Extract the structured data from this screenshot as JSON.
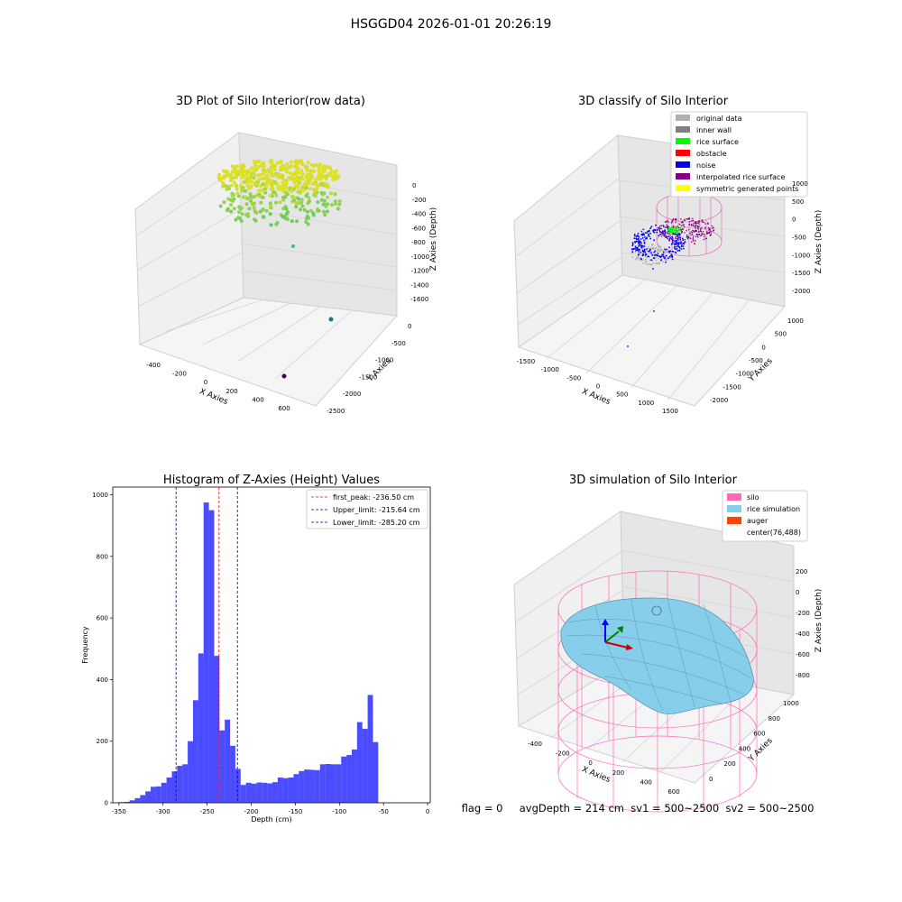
{
  "suptitle": "HSGGD04 2026-01-01 20:26:19",
  "chart_data": [
    {
      "type": "scatter",
      "title": "3D Plot of Silo Interior(row data)",
      "xlabel": "X Axies",
      "ylabel": "Y Axies",
      "zlabel": "Z Axies (Depth)",
      "x_ticks": [
        "-400",
        "-200",
        "0",
        "200",
        "400",
        "600"
      ],
      "y_ticks": [
        "0",
        "-500",
        "-1000",
        "-1500",
        "-2000",
        "-2500"
      ],
      "z_ticks": [
        "0",
        "-200",
        "-400",
        "-600",
        "-800",
        "-1000",
        "-1200",
        "-1400",
        "-1600"
      ],
      "grid": true
    },
    {
      "type": "scatter",
      "title": "3D classify of Silo Interior",
      "xlabel": "X Axies",
      "ylabel": "Y Axies",
      "zlabel": "Z Axies (Depth)",
      "x_ticks": [
        "-1500",
        "-1000",
        "-500",
        "0",
        "500",
        "1000",
        "1500"
      ],
      "y_ticks": [
        "1000",
        "500",
        "0",
        "-500",
        "-1000",
        "-1500",
        "-2000"
      ],
      "z_ticks": [
        "1000",
        "500",
        "0",
        "-500",
        "-1000",
        "-1500",
        "-2000"
      ],
      "legend": {
        "placement": "top-right",
        "entries": [
          {
            "label": "original data",
            "color": "#b0b0b0"
          },
          {
            "label": "inner wall",
            "color": "#808080"
          },
          {
            "label": "rice surface",
            "color": "#00ff00"
          },
          {
            "label": "obstacle",
            "color": "#ff0000"
          },
          {
            "label": "noise",
            "color": "#0000ff"
          },
          {
            "label": "interpolated rice surface",
            "color": "#800080"
          },
          {
            "label": "symmetric generated points",
            "color": "#ffff00"
          }
        ]
      },
      "grid": true
    },
    {
      "type": "bar",
      "title": "Histogram of Z-Axies (Height) Values",
      "xlabel": "Depth (cm)",
      "ylabel": "Frequency",
      "xlim": [
        -357,
        3
      ],
      "ylim": [
        0,
        1025
      ],
      "x_ticks": [
        -350,
        -300,
        -250,
        -200,
        -150,
        -100,
        -50,
        0
      ],
      "y_ticks": [
        0,
        200,
        400,
        600,
        800,
        1000
      ],
      "bin_start": -350,
      "bin_width": 6,
      "values": [
        2,
        3,
        8,
        15,
        25,
        37,
        52,
        53,
        65,
        82,
        102,
        120,
        125,
        200,
        333,
        485,
        975,
        950,
        477,
        235,
        270,
        185,
        110,
        58,
        65,
        62,
        66,
        65,
        63,
        67,
        82,
        80,
        82,
        93,
        103,
        108,
        107,
        106,
        125,
        126,
        125,
        125,
        150,
        155,
        173,
        262,
        240,
        350,
        197,
        0
      ],
      "bar_color": "#0000ff",
      "lines": [
        {
          "label": "first_peak: -236.50 cm",
          "x": -236.5,
          "color": "#ff0000"
        },
        {
          "label": "Upper_limit: -215.64 cm",
          "x": -215.64,
          "color": "#0000aa"
        },
        {
          "label": "Lower_limit: -285.20 cm",
          "x": -285.2,
          "color": "#0000aa"
        }
      ],
      "legend": {
        "placement": "top-right"
      },
      "grid": false
    },
    {
      "type": "area",
      "title": "3D simulation of Silo Interior",
      "xlabel": "X Axies",
      "ylabel": "Y Axies",
      "zlabel": "Z Axies (Depth)",
      "x_ticks": [
        "-400",
        "-200",
        "0",
        "200",
        "400",
        "600"
      ],
      "y_ticks": [
        "0",
        "200",
        "400",
        "600",
        "800",
        "1000"
      ],
      "z_ticks": [
        "200",
        "0",
        "-200",
        "-400",
        "-600",
        "-800"
      ],
      "legend": {
        "placement": "top-right",
        "entries": [
          {
            "label": "silo",
            "color": "#ff69b4"
          },
          {
            "label": "rice simulation",
            "color": "#87ceeb"
          },
          {
            "label": "auger",
            "color": "#ff4500"
          },
          {
            "label": "center(76,488)",
            "color": ""
          }
        ]
      },
      "grid": true
    }
  ],
  "status_line": "flag = 0     avgDepth = 214 cm  sv1 = 500~2500  sv2 = 500~2500"
}
